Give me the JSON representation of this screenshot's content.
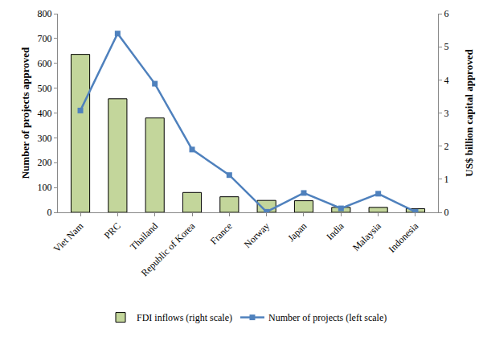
{
  "chart_data": {
    "type": "bar",
    "categories": [
      "Viet Nam",
      "PRC",
      "Thailand",
      "Republic of Korea",
      "France",
      "Norway",
      "Japan",
      "India",
      "Malaysia",
      "Indonesia"
    ],
    "y_label": "Number of projects approved",
    "y2_label": "US$ billion capital approved",
    "ylim": [
      0,
      800
    ],
    "yticks": [
      0,
      100,
      200,
      300,
      400,
      500,
      600,
      700,
      800
    ],
    "y2lim": [
      0,
      6
    ],
    "y2ticks": [
      0,
      1,
      2,
      3,
      4,
      5,
      6
    ],
    "grid": false,
    "legend": "bottom",
    "series": [
      {
        "name": "FDI inflows (right scale)",
        "type": "bar",
        "axis": "y2",
        "color": "#c3d69b",
        "values": [
          4.77,
          3.43,
          2.85,
          0.6,
          0.47,
          0.36,
          0.35,
          0.15,
          0.15,
          0.11
        ]
      },
      {
        "name": "Number of projects (left scale)",
        "type": "line",
        "axis": "y",
        "color": "#4f81bd",
        "marker": "square",
        "line_style": "solid",
        "values": [
          410,
          720,
          518,
          253,
          150,
          2,
          78,
          16,
          75,
          2
        ]
      }
    ]
  }
}
